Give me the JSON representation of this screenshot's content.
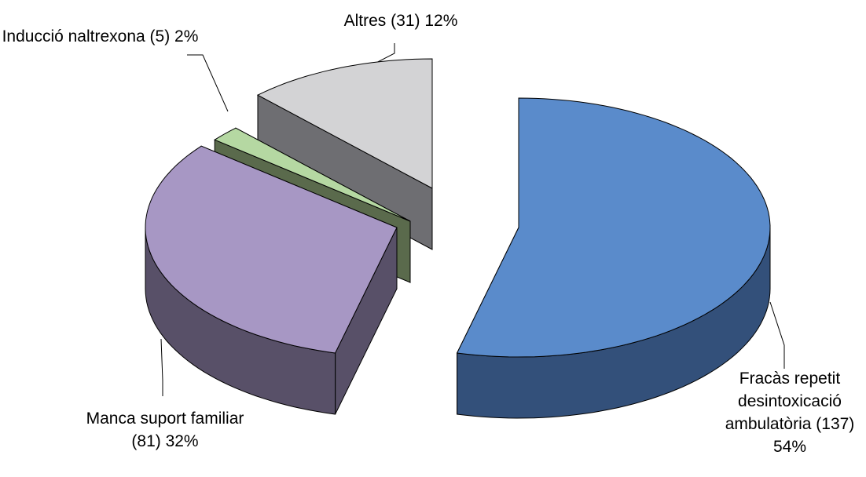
{
  "chart_data": {
    "type": "pie3d",
    "categories": [
      "Fracàs repetit desintoxicació ambulatòria",
      "Manca suport familiar",
      "Inducció naltrexona",
      "Altres"
    ],
    "values": [
      137,
      81,
      5,
      31
    ],
    "value_labels": [
      "(137) 54%",
      "(81) 32%",
      "(5) 2%",
      "(31) 12%"
    ],
    "colors": [
      "#5a8bcb",
      "#a797c4",
      "#b5d8a2",
      "#d3d3d5"
    ]
  }
}
